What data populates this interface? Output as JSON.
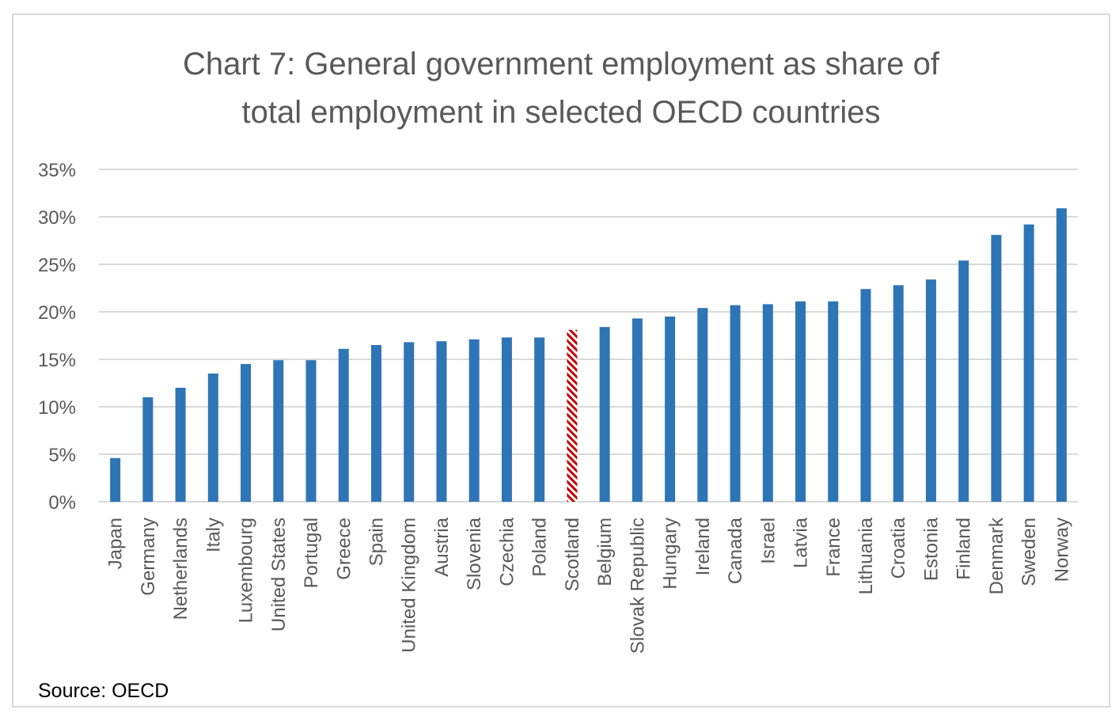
{
  "chart_data": {
    "type": "bar",
    "title_lines": [
      "Chart 7: General government employment as share of",
      "total employment in selected OECD countries"
    ],
    "xlabel": "",
    "ylabel": "",
    "ylim": [
      0,
      35
    ],
    "yticks": [
      "0%",
      "5%",
      "10%",
      "15%",
      "20%",
      "25%",
      "30%",
      "35%"
    ],
    "grid": true,
    "legend": "none",
    "categories": [
      "Japan",
      "Germany",
      "Netherlands",
      "Italy",
      "Luxembourg",
      "United States",
      "Portugal",
      "Greece",
      "Spain",
      "United Kingdom",
      "Austria",
      "Slovenia",
      "Czechia",
      "Poland",
      "Scotland",
      "Belgium",
      "Slovak Republic",
      "Hungary",
      "Ireland",
      "Canada",
      "Israel",
      "Latvia",
      "France",
      "Lithuania",
      "Croatia",
      "Estonia",
      "Finland",
      "Denmark",
      "Sweden",
      "Norway"
    ],
    "values": [
      4.6,
      11.0,
      12.0,
      13.5,
      14.5,
      14.9,
      14.9,
      16.1,
      16.5,
      16.8,
      16.9,
      17.1,
      17.3,
      17.3,
      18.1,
      18.4,
      19.3,
      19.5,
      20.4,
      20.7,
      20.8,
      21.1,
      21.1,
      22.4,
      22.8,
      23.4,
      25.4,
      28.1,
      29.2,
      30.9
    ],
    "highlight": "Scotland",
    "colors": {
      "bar": "#2E75B6",
      "highlight": "#C00000",
      "grid": "#D9D9D9",
      "border": "#D9D9D9"
    },
    "source": "Source: OECD"
  }
}
